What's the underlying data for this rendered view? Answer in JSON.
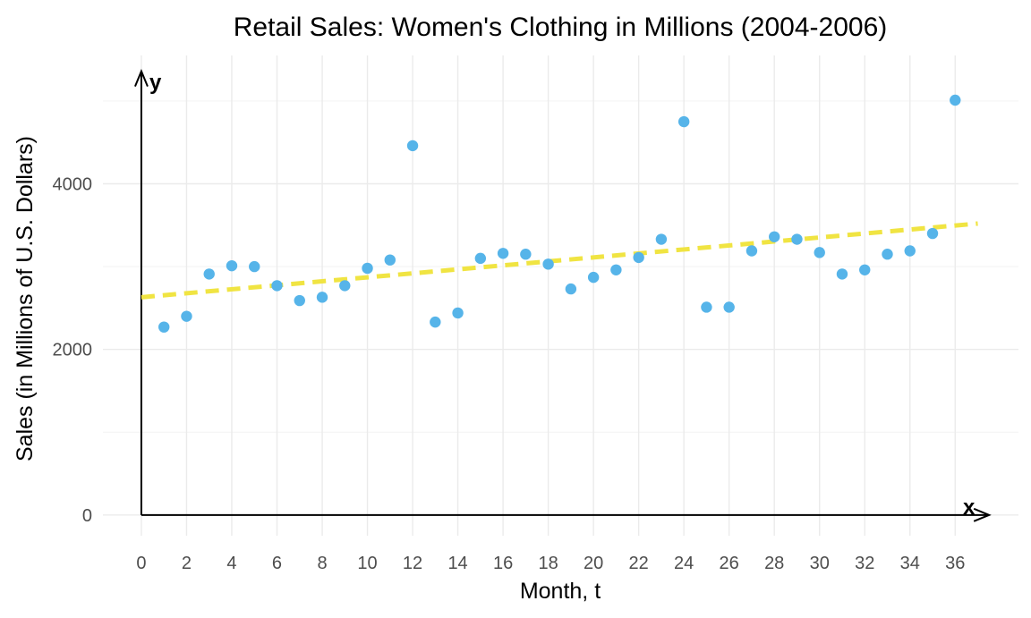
{
  "chart_data": {
    "type": "scatter",
    "title": "Retail Sales: Women's Clothing in Millions (2004-2006)",
    "xlabel": "Month, t",
    "ylabel": "Sales (in Millions of U.S. Dollars)",
    "x_axis_arrow_label": "x",
    "y_axis_arrow_label": "y",
    "xlim": [
      -1.7,
      38.8
    ],
    "ylim": [
      -250,
      5550
    ],
    "x_ticks": [
      0,
      2,
      4,
      6,
      8,
      10,
      12,
      14,
      16,
      18,
      20,
      22,
      24,
      26,
      28,
      30,
      32,
      34,
      36
    ],
    "y_ticks": [
      0,
      2000,
      4000
    ],
    "grid": true,
    "colors": {
      "points": "#56B4E9",
      "trend": "#F0E442",
      "axes": "#000000"
    },
    "series": [
      {
        "type": "scatter",
        "x": [
          1,
          2,
          3,
          4,
          5,
          6,
          7,
          8,
          9,
          10,
          11,
          12,
          13,
          14,
          15,
          16,
          17,
          18,
          19,
          20,
          21,
          22,
          23,
          24,
          25,
          26,
          27,
          28,
          29,
          30,
          31,
          32,
          33,
          34,
          35,
          36
        ],
        "y": [
          2270,
          2400,
          2910,
          3010,
          3000,
          2770,
          2590,
          2630,
          2770,
          2980,
          3080,
          4460,
          2330,
          2440,
          3100,
          3160,
          3150,
          3030,
          2730,
          2870,
          2960,
          3110,
          3330,
          4750,
          2510,
          2510,
          3190,
          3360,
          3330,
          3170,
          2910,
          2960,
          3150,
          3190,
          3400,
          5010
        ]
      },
      {
        "type": "line",
        "style": "dashed",
        "x": [
          0,
          37
        ],
        "y": [
          2630,
          3520
        ]
      }
    ]
  }
}
